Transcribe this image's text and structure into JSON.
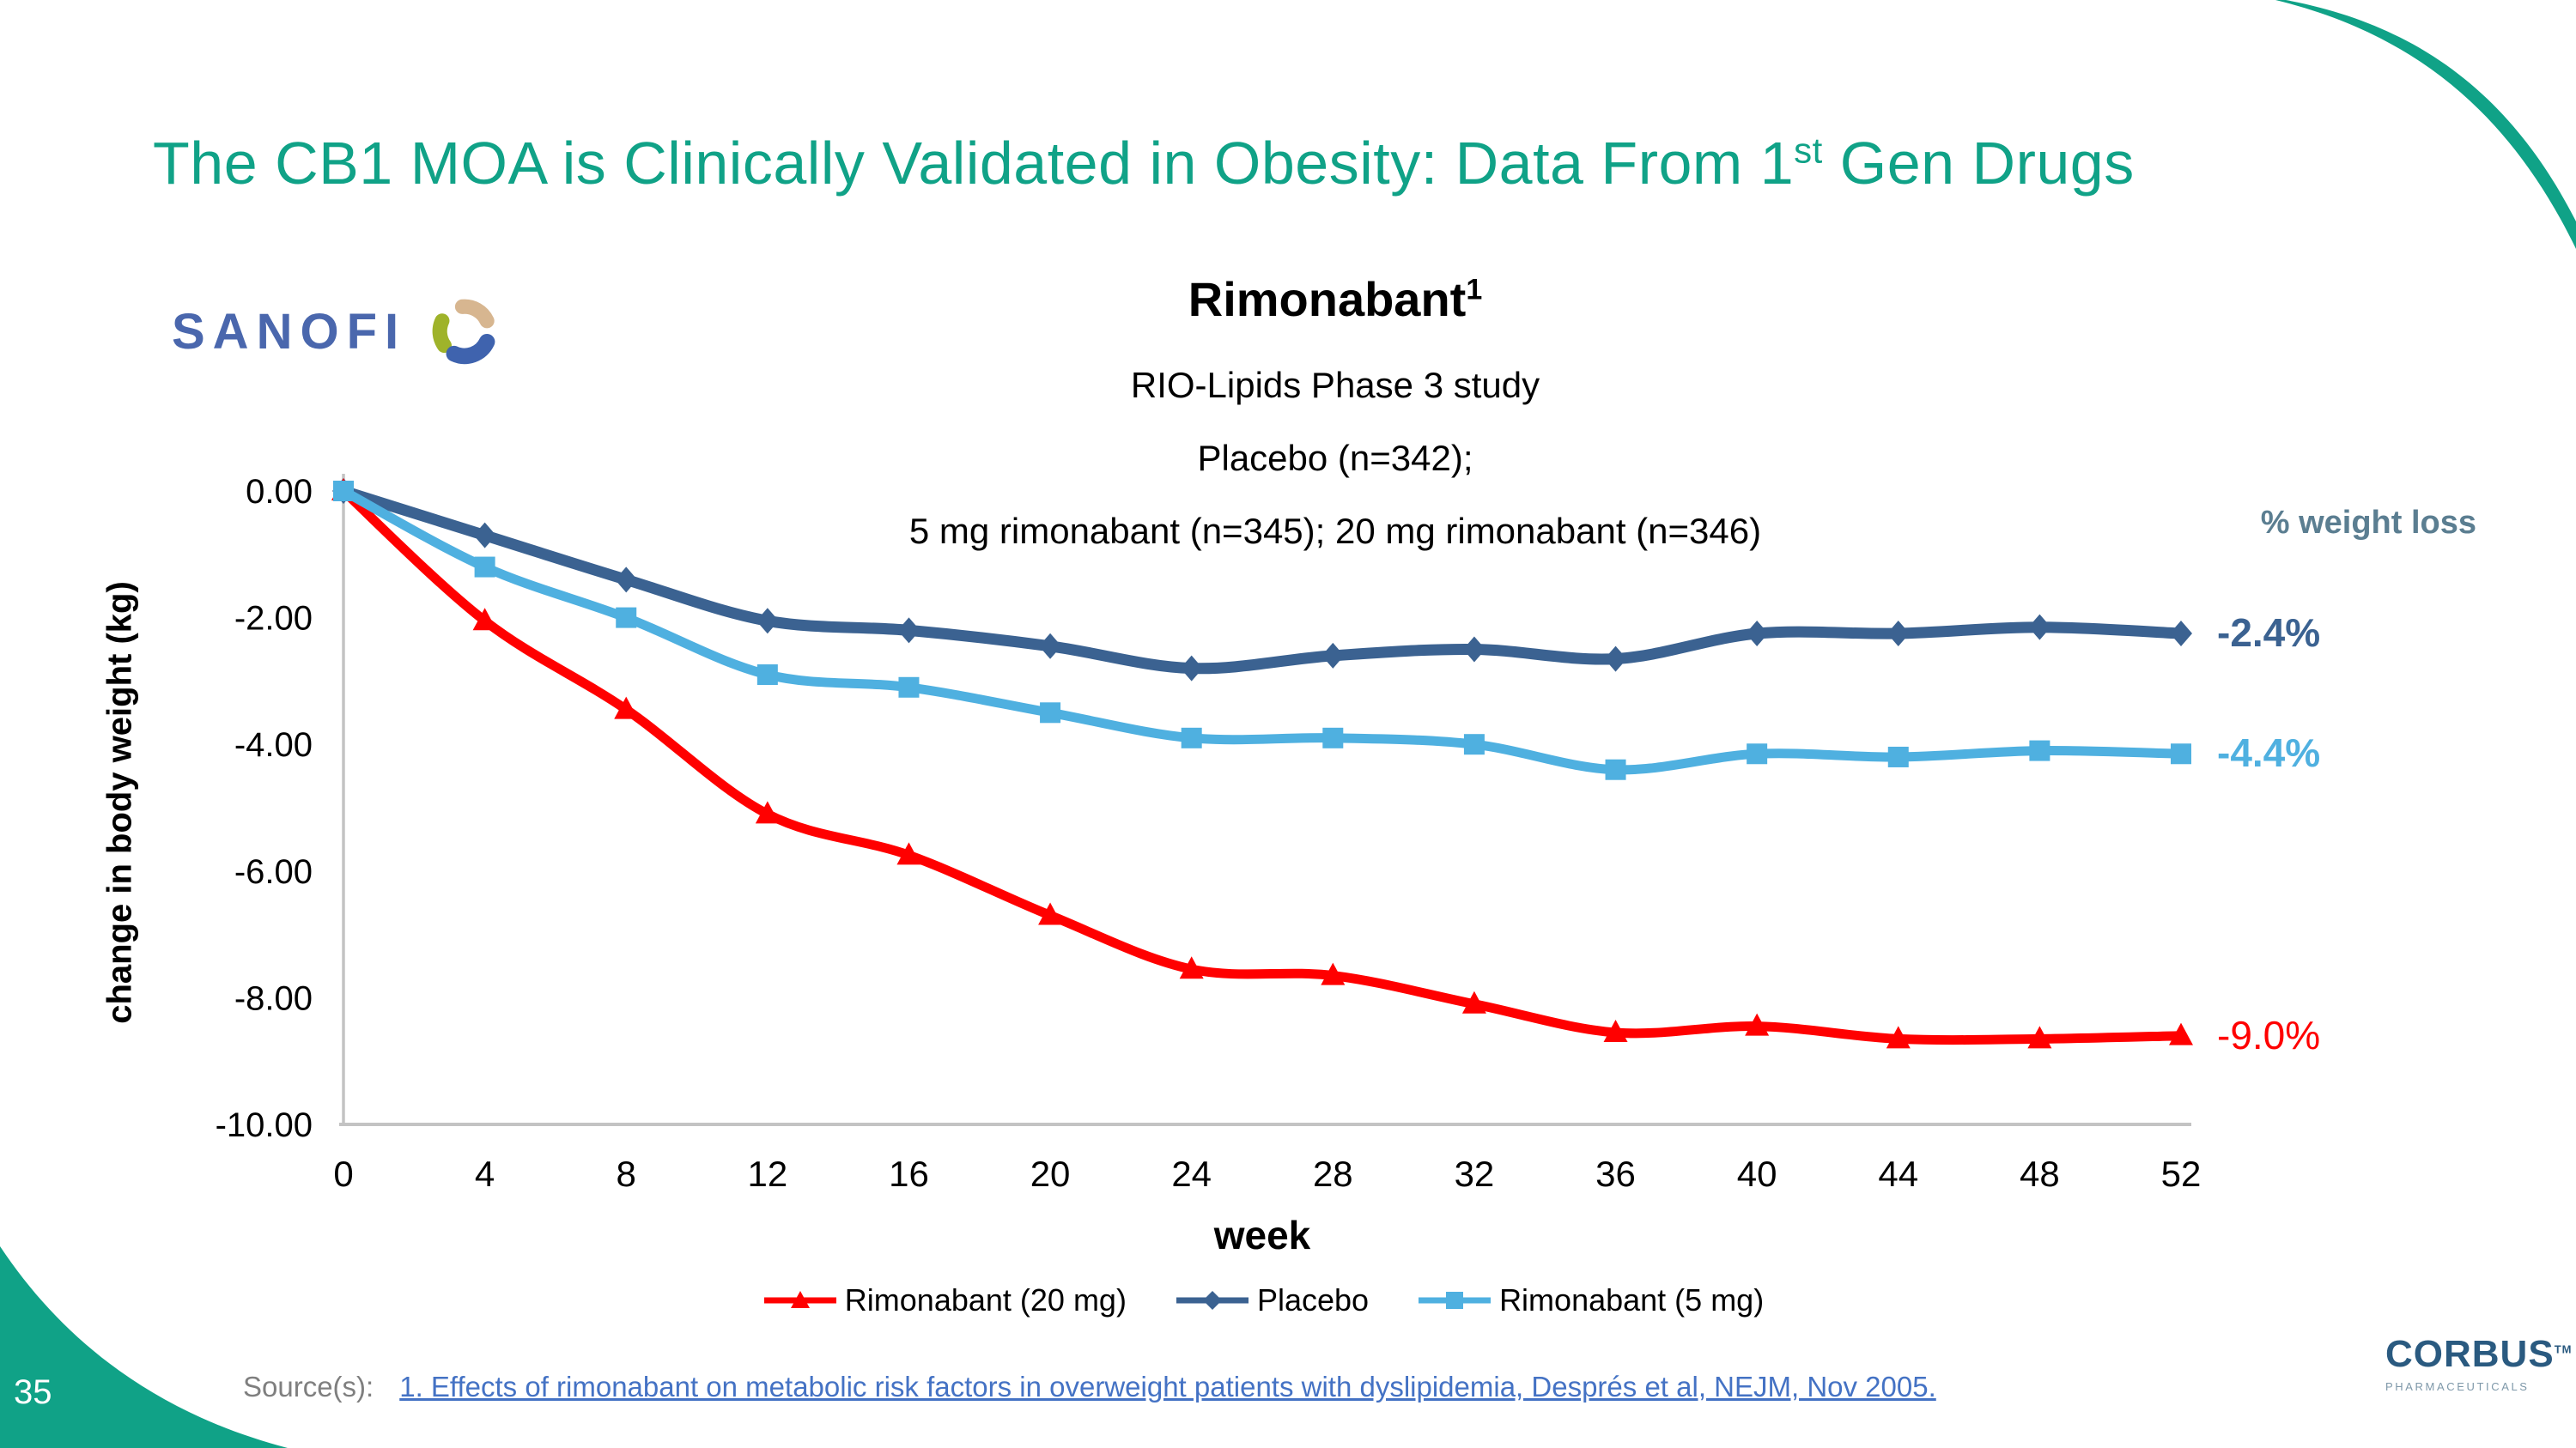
{
  "slide": {
    "title_pre": "The CB1 MOA is Clinically Validated in Obesity: Data From 1",
    "title_sup": "st",
    "title_post": " Gen Drugs",
    "page_number": "35"
  },
  "logos": {
    "sanofi_text": "SANOFI",
    "corbus_name": "CORBUS",
    "corbus_tm": "TM",
    "corbus_sub": "PHARMACEUTICALS"
  },
  "chart_header": {
    "title": "Rimonabant",
    "title_sup": "1",
    "subtitle_study": "RIO-Lipids Phase 3 study",
    "subtitle_placebo": "Placebo (n=342);",
    "subtitle_doses": "5 mg rimonabant (n=345); 20 mg rimonabant (n=346)",
    "right_label": "% weight loss"
  },
  "chart_data": {
    "type": "line",
    "x": [
      0,
      4,
      8,
      12,
      16,
      20,
      24,
      28,
      32,
      36,
      40,
      44,
      48,
      52
    ],
    "xlabel": "week",
    "ylabel": "change in body weight (kg)",
    "ylim": [
      -10,
      0
    ],
    "xlim": [
      0,
      52
    ],
    "yticks": [
      "0.00",
      "-2.00",
      "-4.00",
      "-6.00",
      "-8.00",
      "-10.00"
    ],
    "ytick_values": [
      0,
      -2,
      -4,
      -6,
      -8,
      -10
    ],
    "grid": false,
    "legend_position": "bottom",
    "series": [
      {
        "name": "Rimonabant (20 mg)",
        "color": "#FF0000",
        "marker": "triangle",
        "end_label": "-9.0%",
        "values": [
          0,
          -2.05,
          -3.45,
          -5.1,
          -5.75,
          -6.7,
          -7.55,
          -7.65,
          -8.1,
          -8.55,
          -8.45,
          -8.65,
          -8.65,
          -8.6
        ]
      },
      {
        "name": "Placebo",
        "color": "#3B6291",
        "marker": "diamond",
        "end_label": "-2.4%",
        "values": [
          0,
          -0.7,
          -1.4,
          -2.05,
          -2.2,
          -2.45,
          -2.8,
          -2.6,
          -2.5,
          -2.65,
          -2.25,
          -2.25,
          -2.15,
          -2.25
        ]
      },
      {
        "name": "Rimonabant (5 mg)",
        "color": "#4FB0E0",
        "marker": "square",
        "end_label": "-4.4%",
        "values": [
          0,
          -1.2,
          -2.0,
          -2.9,
          -3.1,
          -3.5,
          -3.9,
          -3.9,
          -4.0,
          -4.4,
          -4.15,
          -4.2,
          -4.1,
          -4.15
        ]
      }
    ]
  },
  "source": {
    "label": "Source(s):",
    "link_text": "1. Effects of rimonabant on metabolic risk factors in overweight patients with dyslipidemia, Després et al, NEJM, Nov 2005."
  },
  "colors": {
    "accent_teal": "#10A287",
    "sanofi_blue": "#4A67AD",
    "sanofi_tan": "#D7B690",
    "sanofi_olive": "#9FB32A",
    "sanofi_swirl_blue": "#3F63AE",
    "axis_gray": "#C3C3C3",
    "right_label_slate": "#5B7E91",
    "source_gray": "#7F7F7F",
    "link_blue": "#4472C4",
    "corbus_navy": "#2A5A80",
    "corbus_sub_gray": "#7E98A9",
    "corbus_green": "#A0C63C",
    "corbus_head_blue": "#64B5E1"
  }
}
